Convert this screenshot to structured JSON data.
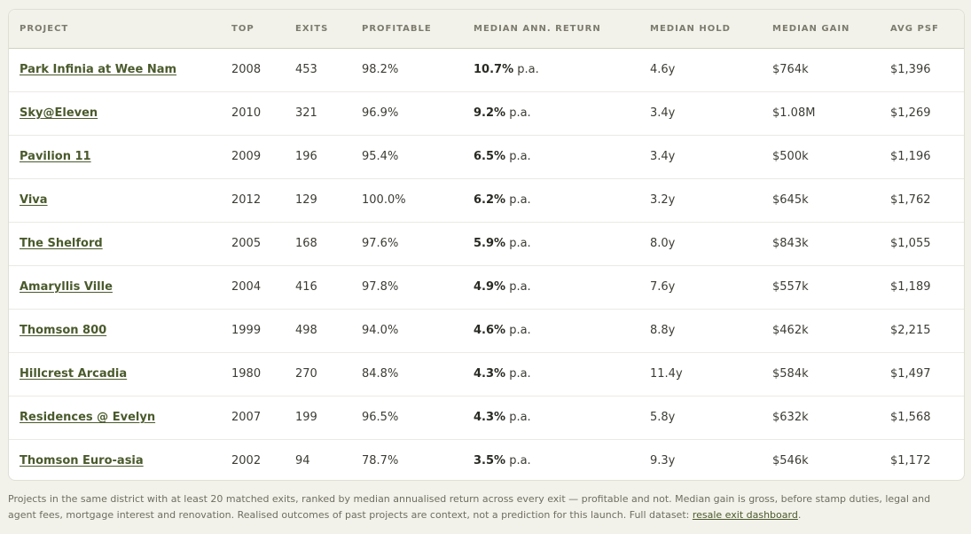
{
  "table": {
    "headers": {
      "project": "PROJECT",
      "top": "TOP",
      "exits": "EXITS",
      "profitable": "PROFITABLE",
      "median_ann_return": "MEDIAN ANN. RETURN",
      "median_hold": "MEDIAN HOLD",
      "median_gain": "MEDIAN GAIN",
      "avg_psf": "AVG PSF"
    },
    "rows": [
      {
        "project": "Park Infinia at Wee Nam",
        "top": "2008",
        "exits": "453",
        "profitable": "98.2%",
        "ret": "10.7%",
        "ret_unit": " p.a.",
        "hold": "4.6y",
        "gain": "$764k",
        "psf": "$1,396"
      },
      {
        "project": "Sky@Eleven",
        "top": "2010",
        "exits": "321",
        "profitable": "96.9%",
        "ret": "9.2%",
        "ret_unit": " p.a.",
        "hold": "3.4y",
        "gain": "$1.08M",
        "psf": "$1,269"
      },
      {
        "project": "Pavilion 11",
        "top": "2009",
        "exits": "196",
        "profitable": "95.4%",
        "ret": "6.5%",
        "ret_unit": " p.a.",
        "hold": "3.4y",
        "gain": "$500k",
        "psf": "$1,196"
      },
      {
        "project": "Viva",
        "top": "2012",
        "exits": "129",
        "profitable": "100.0%",
        "ret": "6.2%",
        "ret_unit": " p.a.",
        "hold": "3.2y",
        "gain": "$645k",
        "psf": "$1,762"
      },
      {
        "project": "The Shelford",
        "top": "2005",
        "exits": "168",
        "profitable": "97.6%",
        "ret": "5.9%",
        "ret_unit": " p.a.",
        "hold": "8.0y",
        "gain": "$843k",
        "psf": "$1,055"
      },
      {
        "project": "Amaryllis Ville",
        "top": "2004",
        "exits": "416",
        "profitable": "97.8%",
        "ret": "4.9%",
        "ret_unit": " p.a.",
        "hold": "7.6y",
        "gain": "$557k",
        "psf": "$1,189"
      },
      {
        "project": "Thomson 800",
        "top": "1999",
        "exits": "498",
        "profitable": "94.0%",
        "ret": "4.6%",
        "ret_unit": " p.a.",
        "hold": "8.8y",
        "gain": "$462k",
        "psf": "$2,215"
      },
      {
        "project": "Hillcrest Arcadia",
        "top": "1980",
        "exits": "270",
        "profitable": "84.8%",
        "ret": "4.3%",
        "ret_unit": " p.a.",
        "hold": "11.4y",
        "gain": "$584k",
        "psf": "$1,497"
      },
      {
        "project": "Residences @ Evelyn",
        "top": "2007",
        "exits": "199",
        "profitable": "96.5%",
        "ret": "4.3%",
        "ret_unit": " p.a.",
        "hold": "5.8y",
        "gain": "$632k",
        "psf": "$1,568"
      },
      {
        "project": "Thomson Euro-asia",
        "top": "2002",
        "exits": "94",
        "profitable": "78.7%",
        "ret": "3.5%",
        "ret_unit": " p.a.",
        "hold": "9.3y",
        "gain": "$546k",
        "psf": "$1,172"
      }
    ]
  },
  "footnote": {
    "text": "Projects in the same district with at least 20 matched exits, ranked by median annualised return across every exit — profitable and not. Median gain is gross, before stamp duties, legal and agent fees, mortgage interest and renovation. Realised outcomes of past projects are context, not a prediction for this launch. Full dataset: ",
    "link_label": "resale exit dashboard",
    "end": "."
  }
}
